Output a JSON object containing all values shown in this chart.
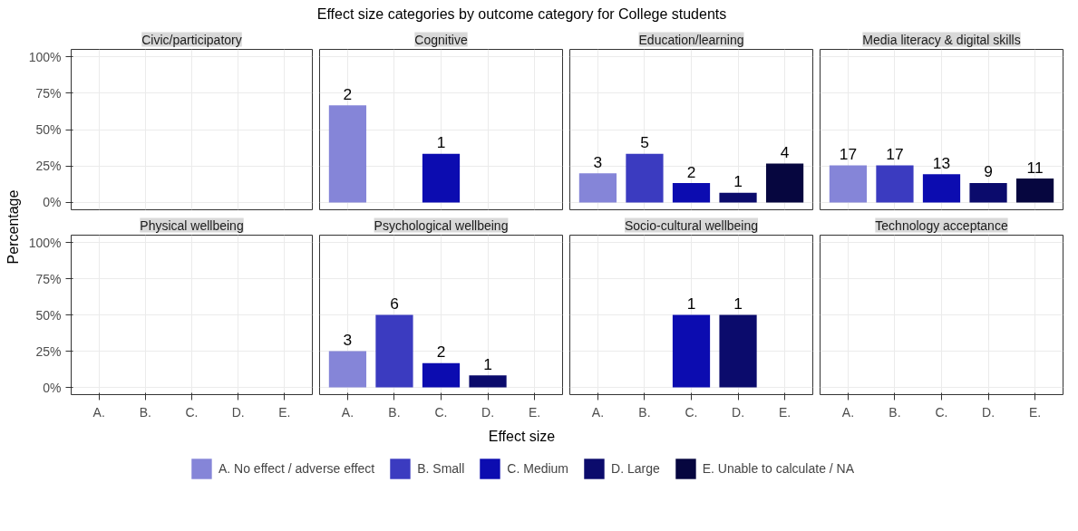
{
  "chart_data": [
    {
      "type": "bar",
      "title": "Civic/participatory",
      "annotations": [
        "Effect size categories by outcome category for College students"
      ],
      "ylabel": "Percentage",
      "categories": [
        "A.",
        "B.",
        "C.",
        "D.",
        "E."
      ],
      "stacked": true,
      "ylim": [
        -5,
        105
      ],
      "yticks": [
        {
          "value": 0,
          "label": "0%"
        },
        {
          "value": 25,
          "label": "25%"
        },
        {
          "value": 50,
          "label": "50%"
        },
        {
          "value": 75,
          "label": "75%"
        },
        {
          "value": 100,
          "label": "100%"
        }
      ],
      "grid": true,
      "legend": "bottom",
      "tick_labels": "y",
      "series": [
        {
          "name": "A. No effect / adverse effect",
          "color": "#8585d8",
          "values": [
            null,
            null,
            null,
            null,
            null
          ]
        },
        {
          "name": "B. Small",
          "color": "#3b3bc0",
          "values": [
            null,
            null,
            null,
            null,
            null
          ]
        },
        {
          "name": "C. Medium",
          "color": "#0c0cb0",
          "values": [
            null,
            null,
            null,
            null,
            null
          ]
        },
        {
          "name": "D. Large",
          "color": "#0b0b6c",
          "values": [
            null,
            null,
            null,
            null,
            null
          ]
        },
        {
          "name": "E. Unable to calculate / NA",
          "color": "#06063f",
          "values": [
            null,
            null,
            null,
            null,
            null
          ]
        }
      ]
    },
    {
      "type": "bar",
      "title": "Cognitive",
      "categories": [
        "A.",
        "B.",
        "C.",
        "D.",
        "E."
      ],
      "stacked": true,
      "ylim": [
        -5,
        105
      ],
      "yticks": [
        {
          "value": 0,
          "label": "0%"
        },
        {
          "value": 25,
          "label": "25%"
        },
        {
          "value": 50,
          "label": "50%"
        },
        {
          "value": 75,
          "label": "75%"
        },
        {
          "value": 100,
          "label": "100%"
        }
      ],
      "grid": true,
      "tick_labels": false,
      "annotations": [
        {
          "text": "2",
          "x": "A.",
          "y": 66.7
        },
        {
          "text": "1",
          "x": "C.",
          "y": 33.3
        }
      ],
      "series": [
        {
          "color": "#8585d8",
          "values": [
            66.7,
            null,
            null,
            null,
            null
          ]
        },
        {
          "color": "#0c0cb0",
          "values": [
            null,
            null,
            33.3,
            null,
            null
          ]
        }
      ]
    },
    {
      "type": "bar",
      "title": "Education/learning",
      "categories": [
        "A.",
        "B.",
        "C.",
        "D.",
        "E."
      ],
      "stacked": true,
      "ylim": [
        -5,
        105
      ],
      "yticks": [
        {
          "value": 0,
          "label": "0%"
        },
        {
          "value": 25,
          "label": "25%"
        },
        {
          "value": 50,
          "label": "50%"
        },
        {
          "value": 75,
          "label": "75%"
        },
        {
          "value": 100,
          "label": "100%"
        }
      ],
      "grid": true,
      "tick_labels": false,
      "annotations": [
        {
          "text": "3",
          "x": "A.",
          "y": 20.0
        },
        {
          "text": "5",
          "x": "B.",
          "y": 33.3
        },
        {
          "text": "2",
          "x": "C.",
          "y": 13.3
        },
        {
          "text": "1",
          "x": "D.",
          "y": 6.7
        },
        {
          "text": "4",
          "x": "E.",
          "y": 26.7
        }
      ],
      "series": [
        {
          "color": "#8585d8",
          "values": [
            20.0,
            null,
            null,
            null,
            null
          ]
        },
        {
          "color": "#3b3bc0",
          "values": [
            null,
            33.3,
            null,
            null,
            null
          ]
        },
        {
          "color": "#0c0cb0",
          "values": [
            null,
            null,
            13.3,
            null,
            null
          ]
        },
        {
          "color": "#0b0b6c",
          "values": [
            null,
            null,
            null,
            6.7,
            null
          ]
        },
        {
          "color": "#06063f",
          "values": [
            null,
            null,
            null,
            null,
            26.7
          ]
        }
      ]
    },
    {
      "type": "bar",
      "title": "Media literacy & digital skills",
      "categories": [
        "A.",
        "B.",
        "C.",
        "D.",
        "E."
      ],
      "stacked": true,
      "ylim": [
        -5,
        105
      ],
      "yticks": [
        {
          "value": 0,
          "label": "0%"
        },
        {
          "value": 25,
          "label": "25%"
        },
        {
          "value": 50,
          "label": "50%"
        },
        {
          "value": 75,
          "label": "75%"
        },
        {
          "value": 100,
          "label": "100%"
        }
      ],
      "grid": true,
      "tick_labels": false,
      "annotations": [
        {
          "text": "17",
          "x": "A.",
          "y": 25.4
        },
        {
          "text": "17",
          "x": "B.",
          "y": 25.4
        },
        {
          "text": "13",
          "x": "C.",
          "y": 19.4
        },
        {
          "text": "9",
          "x": "D.",
          "y": 13.4
        },
        {
          "text": "11",
          "x": "E.",
          "y": 16.4
        }
      ],
      "series": [
        {
          "color": "#8585d8",
          "values": [
            25.4,
            null,
            null,
            null,
            null
          ]
        },
        {
          "color": "#3b3bc0",
          "values": [
            null,
            25.4,
            null,
            null,
            null
          ]
        },
        {
          "color": "#0c0cb0",
          "values": [
            null,
            null,
            19.4,
            null,
            null
          ]
        },
        {
          "color": "#0b0b6c",
          "values": [
            null,
            null,
            null,
            13.4,
            null
          ]
        },
        {
          "color": "#06063f",
          "values": [
            null,
            null,
            null,
            null,
            16.4
          ]
        }
      ]
    },
    {
      "type": "bar",
      "title": "Physical wellbeing",
      "categories": [
        "A.",
        "B.",
        "C.",
        "D.",
        "E."
      ],
      "ylim": [
        -5,
        105
      ],
      "yticks": [
        {
          "value": 0,
          "label": "0%"
        },
        {
          "value": 25,
          "label": "25%"
        },
        {
          "value": 50,
          "label": "50%"
        },
        {
          "value": 75,
          "label": "75%"
        },
        {
          "value": 100,
          "label": "100%"
        }
      ],
      "grid": true,
      "values": [
        null,
        null,
        null,
        null,
        null
      ]
    },
    {
      "type": "bar",
      "title": "Psychological wellbeing",
      "xlabel": "Effect size",
      "categories": [
        "A.",
        "B.",
        "C.",
        "D.",
        "E."
      ],
      "stacked": true,
      "ylim": [
        -5,
        105
      ],
      "yticks": [
        {
          "value": 0,
          "label": "0%"
        },
        {
          "value": 25,
          "label": "25%"
        },
        {
          "value": 50,
          "label": "50%"
        },
        {
          "value": 75,
          "label": "75%"
        },
        {
          "value": 100,
          "label": "100%"
        }
      ],
      "grid": true,
      "tick_labels": "x",
      "annotations": [
        {
          "text": "3",
          "x": "A.",
          "y": 25.0
        },
        {
          "text": "6",
          "x": "B.",
          "y": 50.0
        },
        {
          "text": "2",
          "x": "C.",
          "y": 16.7
        },
        {
          "text": "1",
          "x": "D.",
          "y": 8.3
        }
      ],
      "series": [
        {
          "color": "#8585d8",
          "values": [
            25.0,
            null,
            null,
            null,
            null
          ]
        },
        {
          "color": "#3b3bc0",
          "values": [
            null,
            50.0,
            null,
            null,
            null
          ]
        },
        {
          "color": "#0c0cb0",
          "values": [
            null,
            null,
            16.7,
            null,
            null
          ]
        },
        {
          "color": "#0b0b6c",
          "values": [
            null,
            null,
            null,
            8.3,
            null
          ]
        }
      ]
    },
    {
      "type": "bar",
      "title": "Socio-cultural wellbeing",
      "categories": [
        "A.",
        "B.",
        "C.",
        "D.",
        "E."
      ],
      "stacked": true,
      "ylim": [
        -5,
        105
      ],
      "yticks": [
        {
          "value": 0,
          "label": "0%"
        },
        {
          "value": 25,
          "label": "25%"
        },
        {
          "value": 50,
          "label": "50%"
        },
        {
          "value": 75,
          "label": "75%"
        },
        {
          "value": 100,
          "label": "100%"
        }
      ],
      "grid": true,
      "tick_labels": "x",
      "annotations": [
        {
          "text": "1",
          "x": "C.",
          "y": 50.0
        },
        {
          "text": "1",
          "x": "D.",
          "y": 50.0
        }
      ],
      "series": [
        {
          "color": "#0c0cb0",
          "values": [
            null,
            null,
            50.0,
            null,
            null
          ]
        },
        {
          "color": "#0b0b6c",
          "values": [
            null,
            null,
            null,
            50.0,
            null
          ]
        }
      ]
    },
    {
      "type": "bar",
      "title": "Technology acceptance",
      "categories": [
        "A.",
        "B.",
        "C.",
        "D.",
        "E."
      ],
      "ylim": [
        -5,
        105
      ],
      "yticks": [
        {
          "value": 0,
          "label": "0%"
        },
        {
          "value": 25,
          "label": "25%"
        },
        {
          "value": 50,
          "label": "50%"
        },
        {
          "value": 75,
          "label": "75%"
        },
        {
          "value": 100,
          "label": "100%"
        }
      ],
      "grid": true,
      "tick_labels": "x",
      "values": [
        null,
        null,
        null,
        null,
        null
      ]
    }
  ]
}
